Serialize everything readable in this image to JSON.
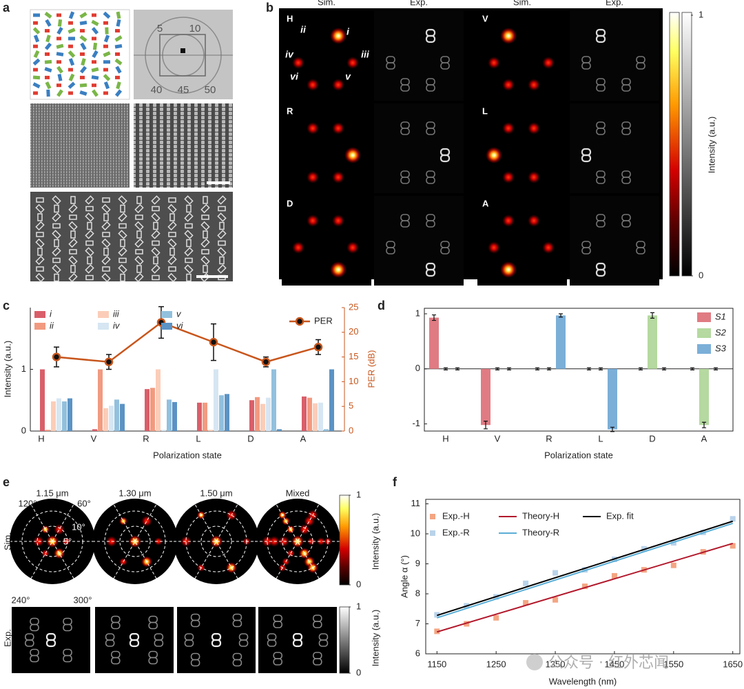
{
  "panel_labels": [
    "a",
    "b",
    "c",
    "d",
    "e",
    "f"
  ],
  "panel_a": {
    "ruler_labels": [
      "5",
      "10",
      "40",
      "45",
      "50"
    ]
  },
  "panel_b": {
    "column_headers": [
      "Sim.",
      "Exp.",
      "Sim.",
      "Exp."
    ],
    "row_labels": [
      "H",
      "V",
      "R",
      "L",
      "D",
      "A"
    ],
    "spot_labels": [
      "i",
      "ii",
      "iii",
      "iv",
      "v",
      "vi"
    ],
    "colorbar": {
      "label": "Intensity (a.u.)",
      "ticks": [
        0,
        1
      ]
    }
  },
  "chart_data": [
    {
      "type": "bar",
      "categories": [
        "H",
        "V",
        "R",
        "L",
        "D",
        "A"
      ],
      "xlabel": "Polarization state",
      "ylabel": "Intensity (a.u.)",
      "y2label": "PER (dB)",
      "ylim": [
        0,
        2
      ],
      "yticks": [
        0,
        1
      ],
      "y2lim": [
        0,
        25
      ],
      "y2ticks": [
        0,
        5,
        10,
        15,
        20,
        25
      ],
      "series": [
        {
          "name": "i",
          "color": "#d95f6a",
          "values": [
            1.0,
            0.03,
            0.68,
            0.46,
            0.5,
            0.56
          ]
        },
        {
          "name": "ii",
          "color": "#f29a80",
          "values": [
            0.02,
            1.0,
            0.7,
            0.46,
            0.55,
            0.54
          ]
        },
        {
          "name": "iii",
          "color": "#fbcdb8",
          "values": [
            0.48,
            0.37,
            1.0,
            0.02,
            0.44,
            0.45
          ]
        },
        {
          "name": "iv",
          "color": "#d6e6f2",
          "values": [
            0.53,
            0.41,
            0.02,
            1.0,
            0.54,
            0.46
          ]
        },
        {
          "name": "v",
          "color": "#92c0dd",
          "values": [
            0.48,
            0.51,
            0.51,
            0.58,
            1.0,
            0.03
          ]
        },
        {
          "name": "vi",
          "color": "#5b93c4",
          "values": [
            0.53,
            0.44,
            0.47,
            0.6,
            0.03,
            1.0
          ]
        },
        {
          "name": "PER",
          "type": "line",
          "axis": "y2",
          "color": "#c8561c",
          "values": [
            15,
            14,
            22,
            18,
            14,
            17
          ],
          "errors": [
            2,
            1.5,
            3.2,
            3.7,
            1,
            1.5
          ]
        }
      ]
    },
    {
      "type": "bar",
      "categories": [
        "H",
        "V",
        "R",
        "L",
        "D",
        "A"
      ],
      "xlabel": "Polarization state",
      "ylim": [
        -1.13,
        1.1
      ],
      "yticks": [
        -1,
        0,
        1
      ],
      "series": [
        {
          "name": "S1",
          "color": "#e07b83",
          "values": [
            0.93,
            -1.02,
            0,
            0,
            0,
            0
          ],
          "errors": [
            0.05,
            0.07,
            0.02,
            0.02,
            0.02,
            0.02
          ]
        },
        {
          "name": "S2",
          "color": "#b5d9a0",
          "values": [
            0,
            0,
            0,
            0,
            0.97,
            -1.02
          ],
          "errors": [
            0.02,
            0.02,
            0.02,
            0.02,
            0.05,
            0.05
          ]
        },
        {
          "name": "S3",
          "color": "#7bafd8",
          "values": [
            0,
            0,
            0.97,
            -1.1,
            0,
            0
          ],
          "errors": [
            0.02,
            0.02,
            0.03,
            0.04,
            0.02,
            0.02
          ]
        }
      ]
    },
    {
      "type": "scatter",
      "xlabel": "Wavelength (nm)",
      "ylabel": "Angle α (°)",
      "xlim": [
        1131,
        1662
      ],
      "xticks": [
        1150,
        1250,
        1350,
        1450,
        1550,
        1650
      ],
      "ylim": [
        6,
        11.15
      ],
      "yticks": [
        6,
        7,
        8,
        9,
        10,
        11
      ],
      "series": [
        {
          "name": "Exp.-H",
          "type": "scatter",
          "color": "#f4a582",
          "x": [
            1150,
            1200,
            1250,
            1300,
            1350,
            1400,
            1450,
            1500,
            1550,
            1600,
            1650
          ],
          "values": [
            6.75,
            7.0,
            7.2,
            7.7,
            7.8,
            8.25,
            8.6,
            8.8,
            8.95,
            9.4,
            9.6
          ]
        },
        {
          "name": "Exp.-R",
          "type": "scatter",
          "color": "#b9d3ea",
          "x": [
            1150,
            1200,
            1250,
            1300,
            1350,
            1400,
            1450,
            1500,
            1550,
            1600,
            1650
          ],
          "values": [
            7.3,
            7.6,
            7.9,
            8.35,
            8.7,
            8.8,
            9.15,
            9.5,
            9.7,
            10.05,
            10.5
          ]
        },
        {
          "name": "Theory-H",
          "type": "line",
          "color": "#b2182b",
          "x": [
            1150,
            1650
          ],
          "values": [
            6.73,
            9.68
          ]
        },
        {
          "name": "Theory-R",
          "type": "line",
          "color": "#5aaed6",
          "x": [
            1150,
            1650
          ],
          "values": [
            7.2,
            10.35
          ]
        },
        {
          "name": "Exp. fit",
          "type": "line",
          "color": "#000000",
          "x": [
            1150,
            1650
          ],
          "values": [
            7.28,
            10.42
          ]
        }
      ]
    }
  ],
  "panel_e": {
    "wavelength_labels": [
      "1.15 μm",
      "1.30 μm",
      "1.50 μm",
      "Mixed"
    ],
    "row_labels": [
      "Sim.",
      "Exp."
    ],
    "angle_labels": [
      "120°",
      "60°",
      "240°",
      "300°"
    ],
    "radius_labels": [
      "10°",
      "5°"
    ],
    "colorbars": [
      {
        "label": "Intensity (a.u.)",
        "ticks": [
          0,
          1
        ]
      },
      {
        "label": "Intensity (a.u.)",
        "ticks": [
          0,
          1
        ]
      }
    ]
  },
  "watermark": "公众号 · 红外芯闻"
}
